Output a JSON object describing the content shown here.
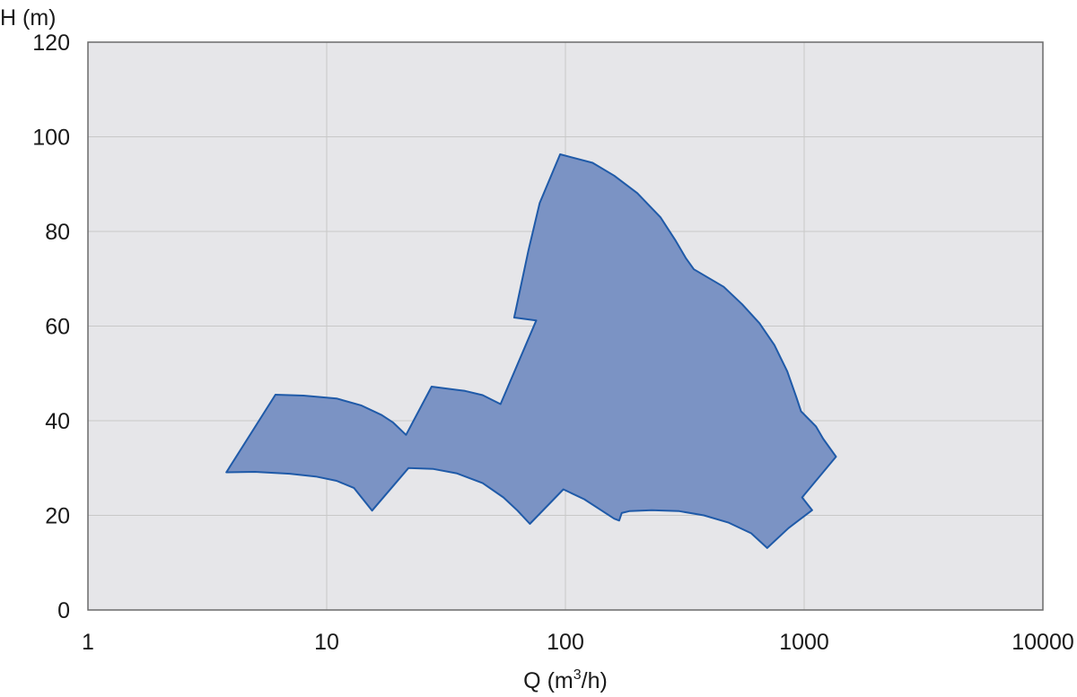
{
  "chart_data": {
    "type": "area",
    "xscale": "log",
    "xlim": [
      1,
      10000
    ],
    "ylim": [
      0,
      120
    ],
    "grid": true,
    "xlabel": {
      "prefix": "Q (m",
      "sup": "3",
      "suffix": "/h)"
    },
    "ylabel": "H (m)",
    "xticks": [
      {
        "value": 1,
        "label": "1"
      },
      {
        "value": 10,
        "label": "10"
      },
      {
        "value": 100,
        "label": "100"
      },
      {
        "value": 1000,
        "label": "1000"
      },
      {
        "value": 10000,
        "label": "10000"
      }
    ],
    "yticks": [
      {
        "value": 0,
        "label": "0"
      },
      {
        "value": 20,
        "label": "20"
      },
      {
        "value": 40,
        "label": "40"
      },
      {
        "value": 60,
        "label": "60"
      },
      {
        "value": 80,
        "label": "80"
      },
      {
        "value": 100,
        "label": "100"
      },
      {
        "value": 120,
        "label": "120"
      }
    ],
    "colors": {
      "fill": "#7b93c4",
      "stroke": "#1f5aa8",
      "plot_background": "#e6e6e9",
      "frame": "#6a6a6a"
    },
    "region": [
      [
        3.8,
        29.1
      ],
      [
        5,
        29.2
      ],
      [
        7,
        28.8
      ],
      [
        9,
        28.2
      ],
      [
        11,
        27.3
      ],
      [
        13,
        25.8
      ],
      [
        15.5,
        21.0
      ],
      [
        22,
        30.0
      ],
      [
        28,
        29.8
      ],
      [
        35,
        28.9
      ],
      [
        45,
        26.8
      ],
      [
        55,
        23.8
      ],
      [
        63,
        21.0
      ],
      [
        71,
        18.2
      ],
      [
        98,
        25.5
      ],
      [
        120,
        23.4
      ],
      [
        140,
        21.2
      ],
      [
        160,
        19.3
      ],
      [
        168,
        18.9
      ],
      [
        172,
        20.5
      ],
      [
        185,
        20.9
      ],
      [
        230,
        21.1
      ],
      [
        300,
        20.9
      ],
      [
        380,
        20.0
      ],
      [
        480,
        18.5
      ],
      [
        600,
        16.2
      ],
      [
        700,
        13.1
      ],
      [
        860,
        17.3
      ],
      [
        1080,
        21.1
      ],
      [
        980,
        23.8
      ],
      [
        1360,
        32.4
      ],
      [
        1200,
        36.2
      ],
      [
        1120,
        38.8
      ],
      [
        970,
        42.0
      ],
      [
        930,
        44.8
      ],
      [
        850,
        50.4
      ],
      [
        750,
        56.0
      ],
      [
        650,
        60.6
      ],
      [
        550,
        64.6
      ],
      [
        460,
        68.3
      ],
      [
        345,
        72.0
      ],
      [
        320,
        74.3
      ],
      [
        290,
        78.0
      ],
      [
        250,
        83.0
      ],
      [
        200,
        88.1
      ],
      [
        160,
        91.8
      ],
      [
        130,
        94.5
      ],
      [
        95,
        96.3
      ],
      [
        78,
        86.0
      ],
      [
        70,
        76.0
      ],
      [
        61,
        61.8
      ],
      [
        75.5,
        61.2
      ],
      [
        53.5,
        43.5
      ],
      [
        45,
        45.4
      ],
      [
        38,
        46.3
      ],
      [
        27.5,
        47.2
      ],
      [
        21.5,
        37.0
      ],
      [
        19,
        39.6
      ],
      [
        17,
        41.2
      ],
      [
        14,
        43.2
      ],
      [
        11,
        44.7
      ],
      [
        8,
        45.3
      ],
      [
        6.1,
        45.5
      ],
      [
        3.8,
        29.1
      ]
    ]
  }
}
